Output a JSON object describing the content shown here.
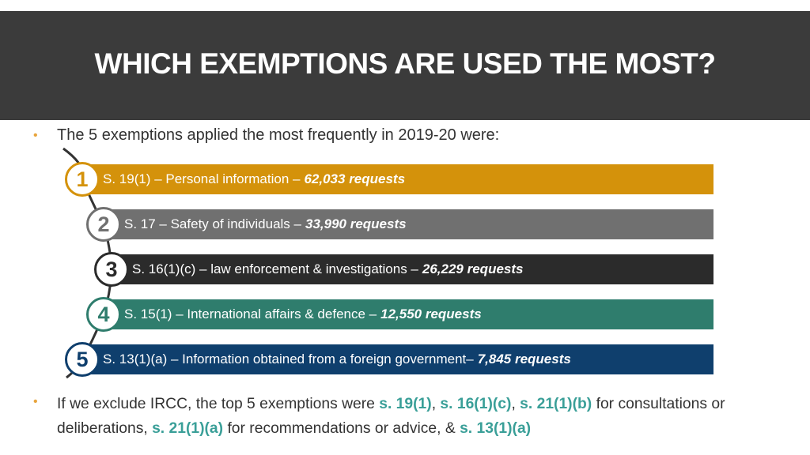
{
  "header": {
    "title": "WHICH EXEMPTIONS ARE USED THE MOST?"
  },
  "intro": "The 5 exemptions applied the most frequently in 2019-20 were:",
  "items": [
    {
      "number": "1",
      "label": "S. 19(1) – Personal information –",
      "count": "62,033 requests",
      "color": "#d4920b"
    },
    {
      "number": "2",
      "label": "S. 17 – Safety of individuals –",
      "count": "33,990 requests",
      "color": "#707070"
    },
    {
      "number": "3",
      "label": "S. 16(1)(c) – law enforcement & investigations –",
      "count": "26,229 requests",
      "color": "#2b2b2b"
    },
    {
      "number": "4",
      "label": "S. 15(1) – International affairs & defence –",
      "count": "12,550 requests",
      "color": "#2f7d6d"
    },
    {
      "number": "5",
      "label": "S. 13(1)(a) – Information obtained from a foreign government–",
      "count": "7,845 requests",
      "color": "#0f3f6d"
    }
  ],
  "footer": [
    {
      "text": "If we exclude IRCC, the top 5 exemptions were",
      "highlight": false
    },
    {
      "text": "s. 19(1)",
      "highlight": true
    },
    {
      "text": ",",
      "highlight": false
    },
    {
      "text": "s. 16(1)(c)",
      "highlight": true
    },
    {
      "text": ",",
      "highlight": false
    },
    {
      "text": "s. 21(1)(b)",
      "highlight": true
    },
    {
      "text": "for consultations or deliberations,",
      "highlight": false
    },
    {
      "text": "s. 21(1)(a)",
      "highlight": true
    },
    {
      "text": "for recommendations or advice, &",
      "highlight": false
    },
    {
      "text": "s. 13(1)(a)",
      "highlight": true
    }
  ]
}
